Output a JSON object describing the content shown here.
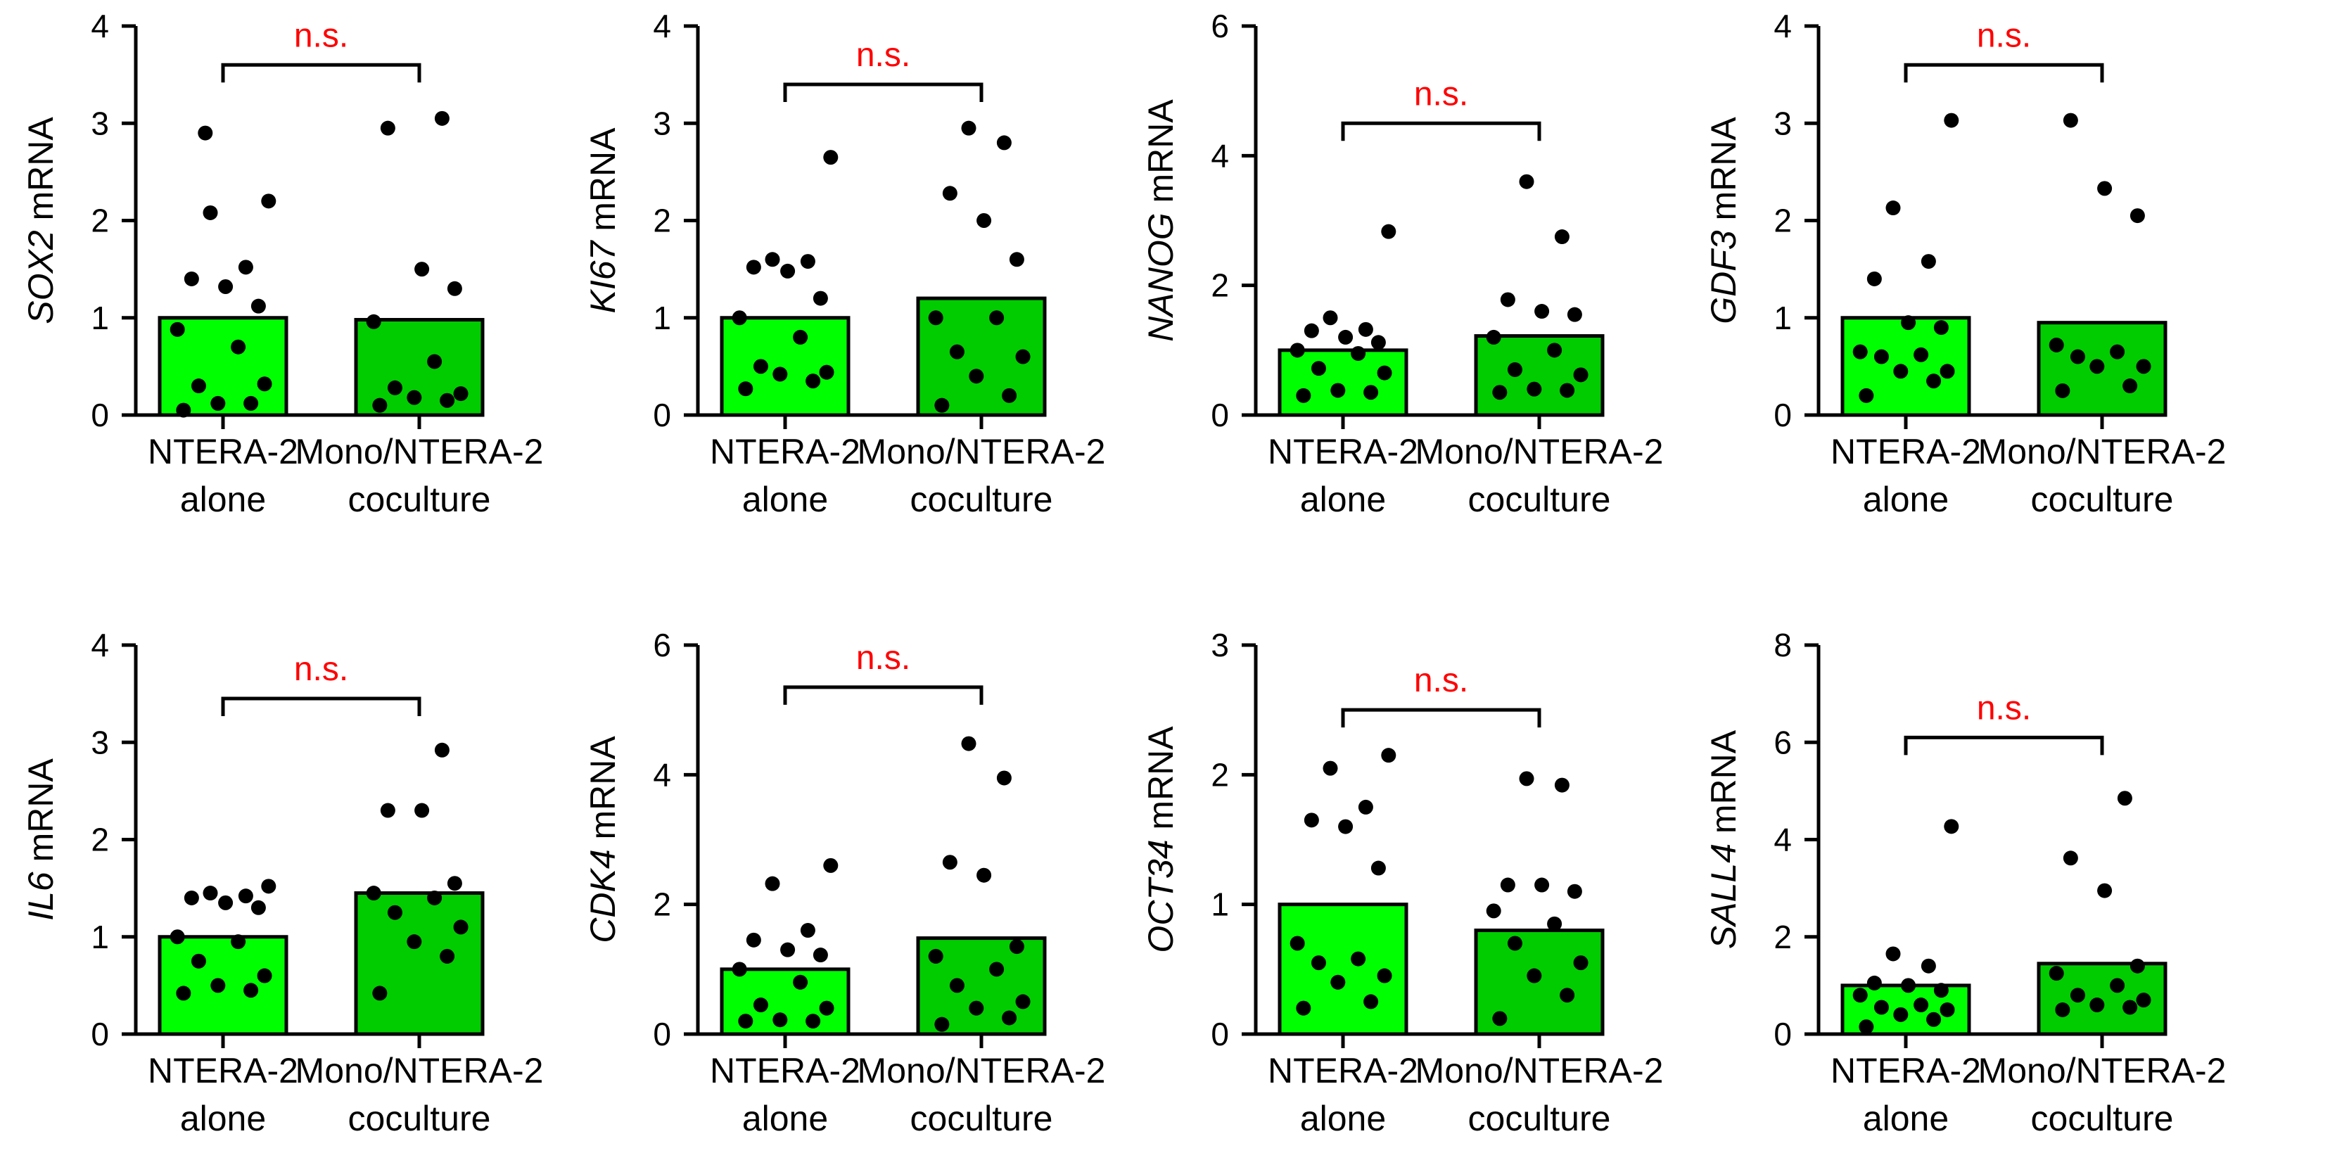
{
  "figure_title": "",
  "colors": {
    "bar_alone": "#00ff00",
    "bar_coculture": "#00cc00",
    "significance": "#ff0000",
    "axis": "#000000",
    "dot": "#000000"
  },
  "chart_data": [
    {
      "type": "bar",
      "gene": "SOX2",
      "ylabel_suffix": " mRNA",
      "ylim": [
        0,
        4
      ],
      "yticks": [
        0,
        1,
        2,
        3,
        4
      ],
      "categories": [
        "NTERA-2 alone",
        "Mono/NTERA-2 coculture"
      ],
      "category_lines": [
        [
          "NTERA-2",
          "alone"
        ],
        [
          "Mono/NTERA-2",
          "coculture"
        ]
      ],
      "values": [
        1.0,
        0.98
      ],
      "points": [
        [
          0.05,
          0.12,
          0.12,
          0.32,
          0.3,
          0.7,
          0.88,
          1.12,
          1.32,
          1.4,
          1.52,
          2.08,
          2.2,
          2.9
        ],
        [
          0.1,
          0.15,
          0.18,
          0.22,
          0.28,
          0.55,
          0.96,
          1.3,
          1.5,
          2.95,
          3.05
        ]
      ],
      "significance": "n.s.",
      "bracket_y": 3.6
    },
    {
      "type": "bar",
      "gene": "KI67",
      "ylabel_suffix": " mRNA",
      "ylim": [
        0,
        4
      ],
      "yticks": [
        0,
        1,
        2,
        3,
        4
      ],
      "categories": [
        "NTERA-2 alone",
        "Mono/NTERA-2 coculture"
      ],
      "category_lines": [
        [
          "NTERA-2",
          "alone"
        ],
        [
          "Mono/NTERA-2",
          "coculture"
        ]
      ],
      "values": [
        1.0,
        1.2
      ],
      "points": [
        [
          0.27,
          0.35,
          0.42,
          0.44,
          0.5,
          0.8,
          1.0,
          1.2,
          1.48,
          1.52,
          1.58,
          1.6,
          2.65
        ],
        [
          0.1,
          0.2,
          0.4,
          0.6,
          0.65,
          1.0,
          1.0,
          1.6,
          2.0,
          2.28,
          2.8,
          2.95
        ]
      ],
      "significance": "n.s.",
      "bracket_y": 3.4
    },
    {
      "type": "bar",
      "gene": "NANOG",
      "ylabel_suffix": " mRNA",
      "ylim": [
        0,
        6
      ],
      "yticks": [
        0,
        2,
        4,
        6
      ],
      "categories": [
        "NTERA-2 alone",
        "Mono/NTERA-2 coculture"
      ],
      "category_lines": [
        [
          "NTERA-2",
          "alone"
        ],
        [
          "Mono/NTERA-2",
          "coculture"
        ]
      ],
      "values": [
        1.0,
        1.22
      ],
      "points": [
        [
          0.3,
          0.35,
          0.38,
          0.65,
          0.72,
          0.95,
          1.0,
          1.12,
          1.2,
          1.3,
          1.32,
          1.5,
          2.83
        ],
        [
          0.35,
          0.38,
          0.4,
          0.62,
          0.7,
          1.0,
          1.2,
          1.55,
          1.6,
          1.78,
          2.75,
          3.6
        ]
      ],
      "significance": "n.s.",
      "bracket_y": 4.5
    },
    {
      "type": "bar",
      "gene": "GDF3",
      "ylabel_suffix": " mRNA",
      "ylim": [
        0,
        4
      ],
      "yticks": [
        0,
        1,
        2,
        3,
        4
      ],
      "categories": [
        "NTERA-2 alone",
        "Mono/NTERA-2 coculture"
      ],
      "category_lines": [
        [
          "NTERA-2",
          "alone"
        ],
        [
          "Mono/NTERA-2",
          "coculture"
        ]
      ],
      "values": [
        1.0,
        0.95
      ],
      "points": [
        [
          0.2,
          0.35,
          0.45,
          0.45,
          0.6,
          0.62,
          0.65,
          0.9,
          0.95,
          1.4,
          1.58,
          2.13,
          3.03
        ],
        [
          0.25,
          0.3,
          0.5,
          0.5,
          0.6,
          0.65,
          0.72,
          2.05,
          2.33,
          3.03
        ]
      ],
      "significance": "n.s.",
      "bracket_y": 3.6
    },
    {
      "type": "bar",
      "gene": "IL6",
      "ylabel_suffix": " mRNA",
      "ylim": [
        0,
        4
      ],
      "yticks": [
        0,
        1,
        2,
        3,
        4
      ],
      "categories": [
        "NTERA-2 alone",
        "Mono/NTERA-2 coculture"
      ],
      "category_lines": [
        [
          "NTERA-2",
          "alone"
        ],
        [
          "Mono/NTERA-2",
          "coculture"
        ]
      ],
      "values": [
        1.0,
        1.45
      ],
      "points": [
        [
          0.42,
          0.45,
          0.5,
          0.6,
          0.75,
          0.95,
          1.0,
          1.3,
          1.35,
          1.4,
          1.42,
          1.45,
          1.52
        ],
        [
          0.42,
          0.8,
          0.95,
          1.1,
          1.25,
          1.4,
          1.45,
          1.55,
          2.3,
          2.3,
          2.92
        ]
      ],
      "significance": "n.s.",
      "bracket_y": 3.45
    },
    {
      "type": "bar",
      "gene": "CDK4",
      "ylabel_suffix": " mRNA",
      "ylim": [
        0,
        6
      ],
      "yticks": [
        0,
        2,
        4,
        6
      ],
      "categories": [
        "NTERA-2 alone",
        "Mono/NTERA-2 coculture"
      ],
      "category_lines": [
        [
          "NTERA-2",
          "alone"
        ],
        [
          "Mono/NTERA-2",
          "coculture"
        ]
      ],
      "values": [
        1.0,
        1.48
      ],
      "points": [
        [
          0.2,
          0.2,
          0.22,
          0.4,
          0.45,
          0.8,
          1.0,
          1.22,
          1.3,
          1.45,
          1.6,
          2.32,
          2.6
        ],
        [
          0.15,
          0.25,
          0.4,
          0.5,
          0.75,
          1.0,
          1.2,
          1.35,
          2.45,
          2.65,
          3.95,
          4.48
        ]
      ],
      "significance": "n.s.",
      "bracket_y": 5.35
    },
    {
      "type": "bar",
      "gene": "OCT34",
      "ylabel_suffix": " mRNA",
      "ylim": [
        0,
        3
      ],
      "yticks": [
        0,
        1,
        2,
        3
      ],
      "categories": [
        "NTERA-2 alone",
        "Mono/NTERA-2 coculture"
      ],
      "category_lines": [
        [
          "NTERA-2",
          "alone"
        ],
        [
          "Mono/NTERA-2",
          "coculture"
        ]
      ],
      "values": [
        1.0,
        0.8
      ],
      "points": [
        [
          0.2,
          0.25,
          0.4,
          0.45,
          0.55,
          0.58,
          0.7,
          1.28,
          1.6,
          1.65,
          1.75,
          2.05,
          2.15
        ],
        [
          0.12,
          0.3,
          0.45,
          0.55,
          0.7,
          0.85,
          0.95,
          1.1,
          1.15,
          1.15,
          1.92,
          1.97
        ]
      ],
      "significance": "n.s.",
      "bracket_y": 2.5
    },
    {
      "type": "bar",
      "gene": "SALL4",
      "ylabel_suffix": " mRNA",
      "ylim": [
        0,
        8
      ],
      "yticks": [
        0,
        2,
        4,
        6,
        8
      ],
      "categories": [
        "NTERA-2 alone",
        "Mono/NTERA-2 coculture"
      ],
      "category_lines": [
        [
          "NTERA-2",
          "alone"
        ],
        [
          "Mono/NTERA-2",
          "coculture"
        ]
      ],
      "values": [
        1.0,
        1.45
      ],
      "points": [
        [
          0.15,
          0.3,
          0.4,
          0.5,
          0.55,
          0.6,
          0.8,
          0.9,
          1.0,
          1.05,
          1.4,
          1.65,
          4.27
        ],
        [
          0.5,
          0.55,
          0.6,
          0.7,
          0.8,
          1.0,
          1.25,
          1.4,
          2.95,
          3.62,
          4.85
        ]
      ],
      "significance": "n.s.",
      "bracket_y": 6.1
    }
  ]
}
